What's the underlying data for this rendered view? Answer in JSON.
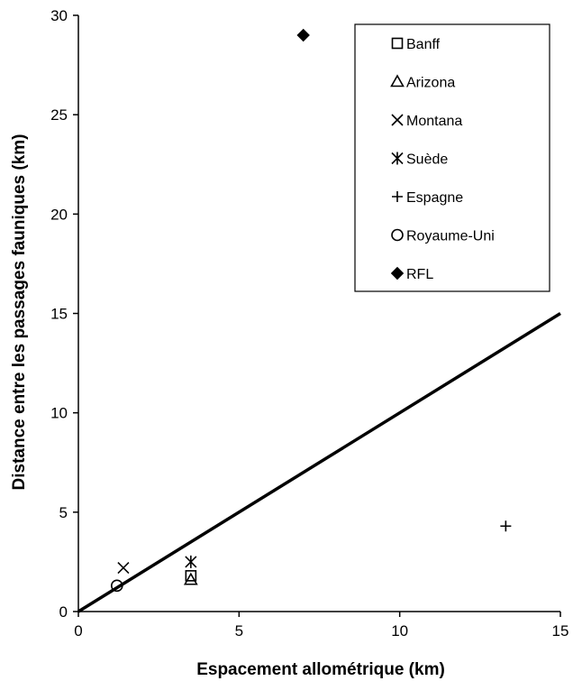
{
  "chart_data": {
    "type": "scatter",
    "title": "",
    "xlabel": "Espacement allométrique (km)",
    "ylabel": "Distance entre les passages fauniques  (km)",
    "xlim": [
      0,
      15
    ],
    "ylim": [
      0,
      30
    ],
    "xticks": [
      0,
      5,
      10,
      15
    ],
    "yticks": [
      0,
      5,
      10,
      15,
      20,
      25,
      30
    ],
    "grid": false,
    "legend_position": "top-right",
    "series": [
      {
        "name": "Banff",
        "marker": "square-open",
        "points": [
          [
            3.5,
            1.8
          ]
        ]
      },
      {
        "name": "Arizona",
        "marker": "triangle-open",
        "points": [
          [
            3.5,
            1.6
          ]
        ]
      },
      {
        "name": "Montana",
        "marker": "x",
        "points": [
          [
            1.4,
            2.2
          ]
        ]
      },
      {
        "name": "Suède",
        "marker": "asterisk",
        "points": [
          [
            3.5,
            2.5
          ]
        ]
      },
      {
        "name": "Espagne",
        "marker": "plus",
        "points": [
          [
            13.3,
            4.3
          ]
        ]
      },
      {
        "name": "Royaume-Uni",
        "marker": "circle-open",
        "points": [
          [
            1.2,
            1.3
          ]
        ]
      },
      {
        "name": "RFL",
        "marker": "diamond-filled",
        "points": [
          [
            7.0,
            29.0
          ]
        ]
      }
    ],
    "reference_line": {
      "type": "y=x",
      "from": [
        0,
        0
      ],
      "to": [
        15,
        15
      ]
    }
  }
}
